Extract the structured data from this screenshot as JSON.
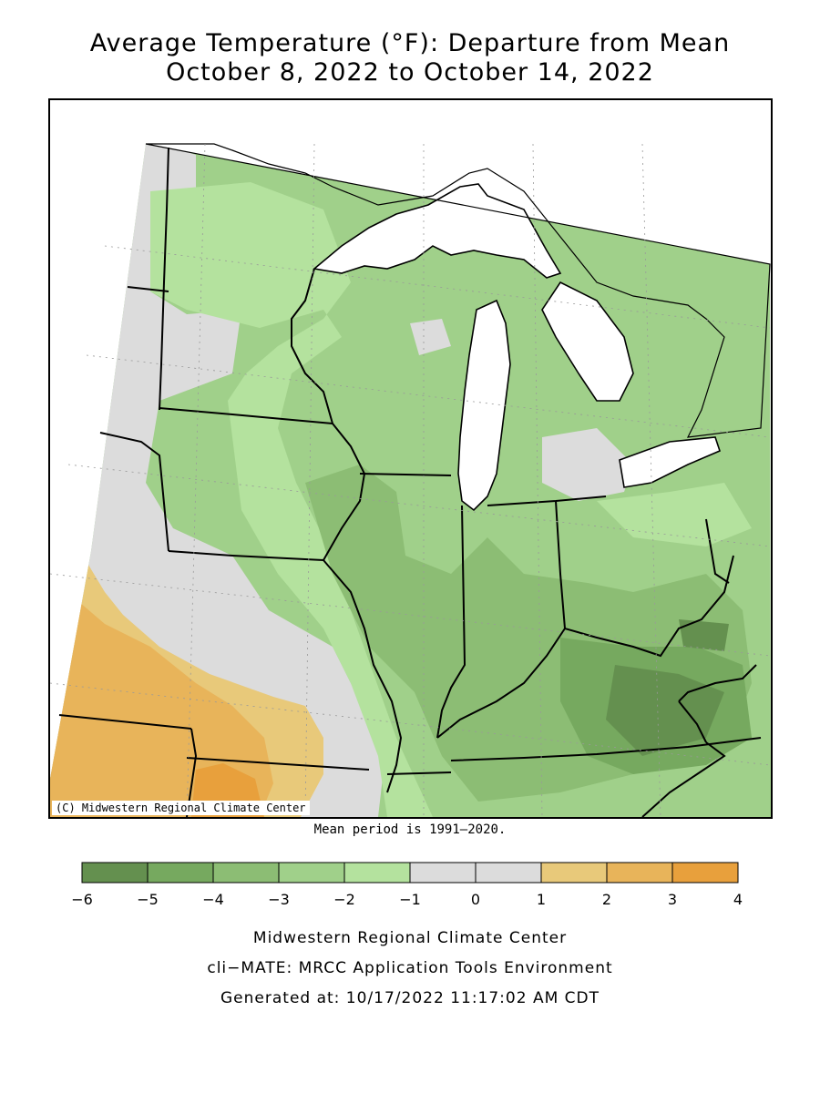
{
  "title": {
    "line1": "Average Temperature (°F): Departure from Mean",
    "line2": "October 8, 2022 to October 14, 2022"
  },
  "map": {
    "copyright": "(C) Midwestern Regional Climate Center",
    "mean_period": "Mean period is 1991–2020.",
    "colors": {
      "dep_-6_-5": "#64904f",
      "dep_-5_-4": "#76a95f",
      "dep_-4_-3": "#8cbd74",
      "dep_-3_-2": "#a0d08a",
      "dep_-2_-1": "#b4e29e",
      "dep_-1_0": "#dcdcdc",
      "dep_0_1": "#dcdcdc",
      "dep_1_2": "#e8c97a",
      "dep_2_3": "#e8b45a",
      "dep_3_4": "#e8a03c",
      "water": "#ffffff"
    }
  },
  "legend": {
    "ticks": [
      "−6",
      "−5",
      "−4",
      "−3",
      "−2",
      "−1",
      "0",
      "1",
      "2",
      "3",
      "4"
    ],
    "colors": [
      "#64904f",
      "#76a95f",
      "#8cbd74",
      "#a0d08a",
      "#b4e29e",
      "#dcdcdc",
      "#dcdcdc",
      "#e8c97a",
      "#e8b45a",
      "#e8a03c"
    ]
  },
  "footer": {
    "line1": "Midwestern Regional Climate Center",
    "line2": "cli−MATE: MRCC Application Tools Environment",
    "line3": "Generated at: 10/17/2022 11:17:02 AM CDT"
  }
}
